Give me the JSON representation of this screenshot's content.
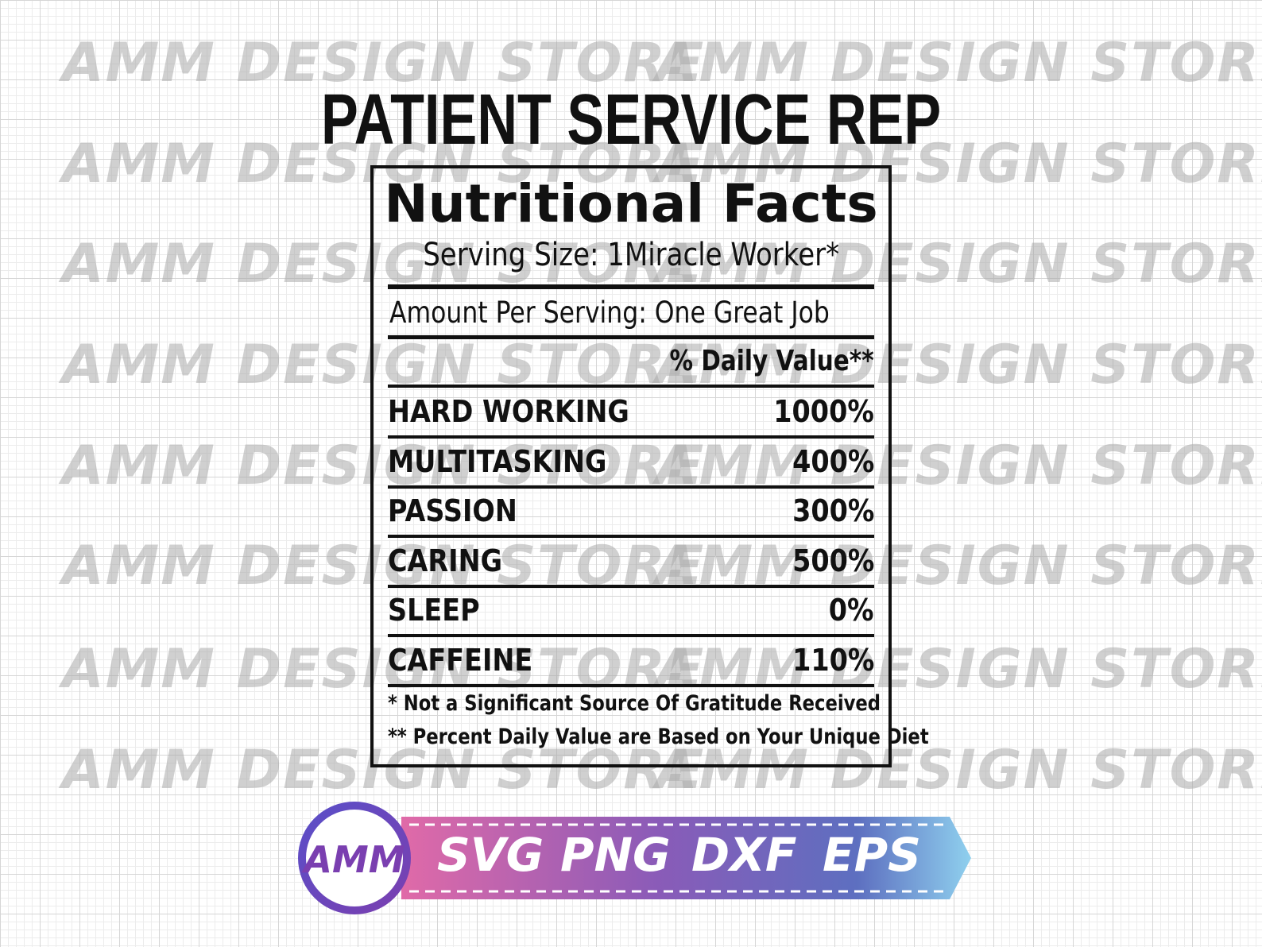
{
  "watermark": "AMM DESIGN STORE",
  "header": {
    "title": "PATIENT SERVICE REP"
  },
  "label": {
    "title": "Nutritional Facts",
    "serving_size": "Serving Size: 1Miracle Worker*",
    "amount_per_serving": "Amount Per Serving: One Great Job",
    "daily_value_header": "% Daily Value**",
    "rows": [
      [
        "HARD WORKING",
        "1000%"
      ],
      [
        "MULTITASKING",
        "400%"
      ],
      [
        "PASSION",
        "300%"
      ],
      [
        "CARING",
        "500%"
      ],
      [
        "SLEEP",
        "0%"
      ],
      [
        "CAFFEINE",
        "110%"
      ]
    ],
    "footnotes": [
      "* Not a Significant Source Of Gratitude Received",
      "** Percent Daily Value are Based on Your Unique Diet"
    ]
  },
  "badge": {
    "logo": "AMM",
    "formats": [
      "SVG",
      "PNG",
      "DXF",
      "EPS"
    ]
  }
}
